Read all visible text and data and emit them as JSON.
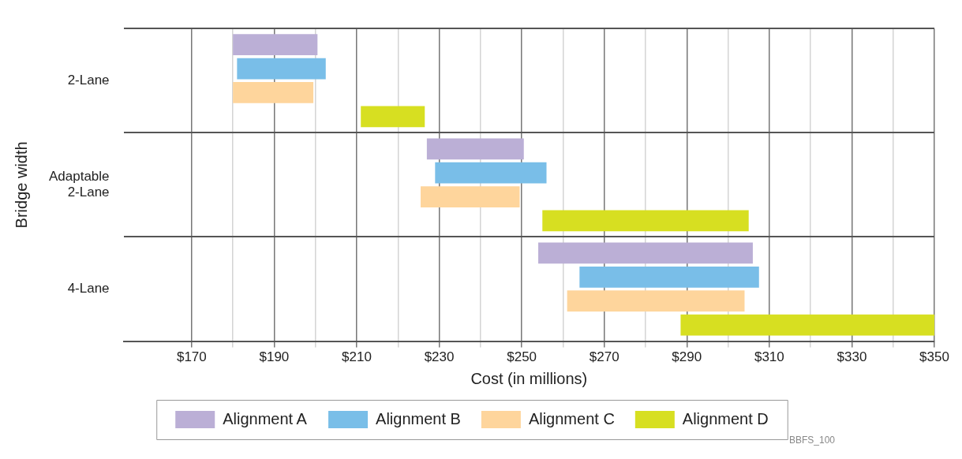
{
  "chart_data": {
    "type": "bar",
    "orientation": "horizontal",
    "xlabel": "Cost (in millions)",
    "ylabel": "Bridge width",
    "categories": [
      "2-Lane",
      "Adaptable 2-Lane",
      "4-Lane"
    ],
    "series": [
      {
        "name": "Alignment A",
        "color": "#bbafd6",
        "base": [
          180,
          227,
          254
        ],
        "values": [
          20.5,
          23.5,
          52
        ]
      },
      {
        "name": "Alignment B",
        "color": "#79bee8",
        "base": [
          181,
          229,
          264
        ],
        "values": [
          21.5,
          27,
          43.5
        ]
      },
      {
        "name": "Alignment C",
        "color": "#fed59c",
        "base": [
          180,
          225.5,
          261
        ],
        "values": [
          19.5,
          24,
          43
        ]
      },
      {
        "name": "Alignment D",
        "color": "#d7df21",
        "base": [
          211,
          255,
          288.5
        ],
        "values": [
          15.5,
          50,
          61.5
        ]
      }
    ],
    "xlim": [
      153.5,
      350
    ],
    "xticks": [
      {
        "value": 170,
        "label": "$170"
      },
      {
        "value": 180,
        "label": null
      },
      {
        "value": 190,
        "label": "$190"
      },
      {
        "value": 200,
        "label": null
      },
      {
        "value": 210,
        "label": "$210"
      },
      {
        "value": 220,
        "label": null
      },
      {
        "value": 230,
        "label": "$230"
      },
      {
        "value": 240,
        "label": null
      },
      {
        "value": 250,
        "label": "$250"
      },
      {
        "value": 260,
        "label": null
      },
      {
        "value": 270,
        "label": "$270"
      },
      {
        "value": 280,
        "label": null
      },
      {
        "value": 290,
        "label": "$290"
      },
      {
        "value": 300,
        "label": null
      },
      {
        "value": 310,
        "label": "$310"
      },
      {
        "value": 320,
        "label": null
      },
      {
        "value": 330,
        "label": "$330"
      },
      {
        "value": 340,
        "label": null
      },
      {
        "value": 350,
        "label": "$350"
      }
    ],
    "grid": true,
    "legend": "bottom",
    "annotations": [
      "BBFS_100"
    ]
  }
}
